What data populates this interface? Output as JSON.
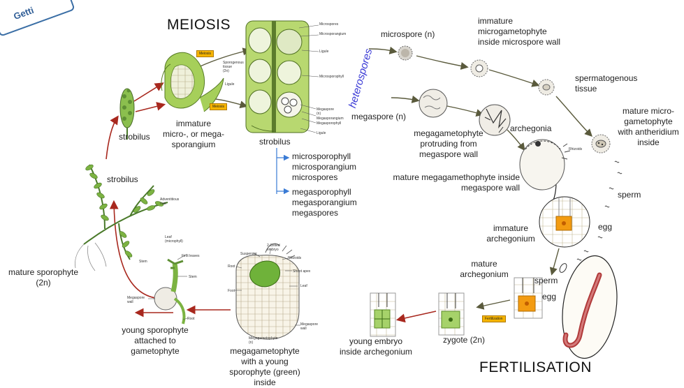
{
  "badge": {
    "text": "Getti"
  },
  "titles": {
    "meiosis": "MEIOSIS",
    "fertilisation": "FERTILISATION",
    "heterospores": "heterospores"
  },
  "labels": {
    "strobilus_top": "strobilus",
    "immature_sporangium": "immature\nmicro-, or mega-\nsporangium",
    "strobilus_section": "strobilus",
    "micro_list": "microsporophyll\nmicrosporangium\nmicrospores",
    "mega_list": "megasporophyll\nmegasporangium\nmegaspores",
    "microspore": "microspore (n)",
    "immature_microgametophyte": "immature\nmicrogametophyte\ninside microspore wall",
    "spermatogenous": "spermatogenous\ntissue",
    "mature_microgametophyte": "mature micro-\ngametophyte\nwith antheridium\ninside",
    "megaspore": "megaspore (n)",
    "megagametophyte_protruding": "megagametophyte\nprotruding from\nmegaspore wall",
    "archegonia": "archegonia",
    "mature_megagametophyte": "mature megagamethophyte inside\nmegaspore wall",
    "sperm_right": "sperm",
    "egg_right": "egg",
    "immature_archegonium": "immature\narchegonium",
    "mature_archegonium": "mature\narchegonium",
    "sperm_mid": "sperm",
    "egg_mid": "egg",
    "zygote": "zygote (2n)",
    "young_embryo": "young embryo\ninside archegonium",
    "megagametophyte_young": "megagametophyte\nwith a young\nsporophyte (green)\ninside",
    "young_sporophyte": "young sporophyte\nattached to\ngametophyte",
    "mature_sporophyte": "mature sporophyte\n(2n)",
    "strobilus_plant": "strobilus"
  },
  "small_labels": {
    "sporogenous": "Sporogenous\ntissue\n(2n)",
    "ligule_a": "Ligule",
    "meiosis_tag1": "Meiosis",
    "meiosis_tag2": "Meiosis",
    "microspores_s": "Microspores",
    "microsporangium_s": "Microsporangium",
    "ligule_b": "Ligule",
    "microsporophyll_s": "Microsporophyll",
    "megaspore_s": "Megaspore\n(n)",
    "megasporangium_s": "Megasporangium",
    "megasporophyll_s": "Megasporophyll",
    "ligule_c": "Ligule",
    "rhizoids": "Rhizoids",
    "adventitious": "Adventitious\nroot",
    "leaf_micro": "Leaf\n(microphyll)",
    "stem_a": "Stem",
    "suspensor": "Suspensor",
    "two_celled": "2-Celled\nembryo",
    "rhizoids2": "Rhizoids",
    "shoot_apex": "Shoot apex",
    "root_s": "Root",
    "foot": "Foot",
    "leaf2": "Leaf",
    "megaspore_wall": "Megaspore\nwall",
    "megagametophyte_s": "Megagametophyte\n(n)",
    "first_leaves": "First leaves",
    "stem_b": "Stem",
    "megaspore_wall2": "Megaspore\nwall",
    "root_b": "Root",
    "fertilization_tag": "Fertilization"
  },
  "colors": {
    "arrow_red": "#a8281e",
    "arrow_dark": "#5a5a3c",
    "accent_blue": "#3a7bd5",
    "plant_green": "#7cb342",
    "egg_orange": "#f39c12"
  }
}
